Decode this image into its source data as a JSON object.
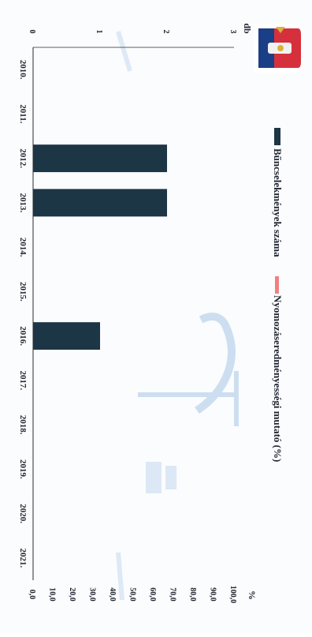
{
  "chart_data": {
    "type": "bar",
    "orientation": "rotated-90",
    "categories": [
      "2010.",
      "2011.",
      "2012.",
      "2013.",
      "2014.",
      "2015.",
      "2016.",
      "2017.",
      "2018.",
      "2019.",
      "2020.",
      "2021."
    ],
    "series": [
      {
        "name": "Bűncselekmények száma",
        "color": "#1d3646",
        "axis": "left",
        "values": [
          0,
          0,
          2,
          2,
          0,
          0,
          1,
          0,
          0,
          0,
          0,
          0
        ]
      },
      {
        "name": "Nyomozáseredményességi mutató (%)",
        "color": "#f08080",
        "axis": "right",
        "values": [
          null,
          null,
          null,
          null,
          null,
          null,
          null,
          null,
          null,
          null,
          null,
          null
        ]
      }
    ],
    "y_left": {
      "label": "db",
      "ticks": [
        "0",
        "1",
        "2",
        "3"
      ],
      "range": [
        0,
        3
      ]
    },
    "y_right": {
      "label": "%",
      "ticks": [
        "0,0",
        "10,0",
        "20,0",
        "30,0",
        "40,0",
        "50,0",
        "60,0",
        "70,0",
        "80,0",
        "90,0",
        "100,0"
      ],
      "range": [
        0,
        100
      ]
    },
    "legend_position": "top",
    "grid": false
  },
  "colors": {
    "bar": "#1d3646",
    "rate_swatch": "#f08080",
    "watermark": "#a9c6e8"
  },
  "icons": {
    "logo": "coat-of-arms-logo"
  }
}
